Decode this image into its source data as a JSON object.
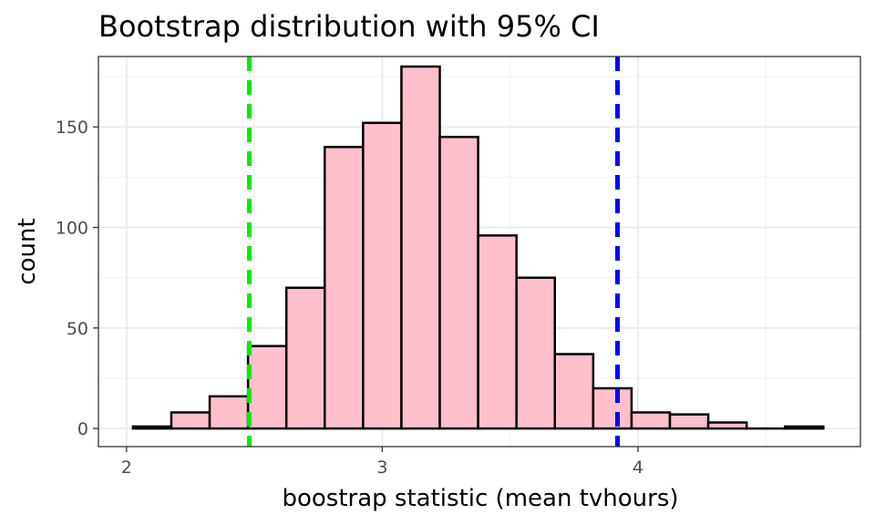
{
  "chart_data": {
    "type": "bar",
    "title": "Bootstrap distribution with 95% CI",
    "xlabel": "boostrap statistic (mean tvhours)",
    "ylabel": "count",
    "xlim": [
      1.89,
      4.87
    ],
    "ylim": [
      -9,
      185
    ],
    "x_ticks": [
      2,
      3,
      4
    ],
    "y_ticks": [
      0,
      50,
      100,
      150
    ],
    "grid": true,
    "bin_width": 0.15,
    "bins": [
      {
        "x0": 2.025,
        "x1": 2.175,
        "count": 1
      },
      {
        "x0": 2.175,
        "x1": 2.325,
        "count": 8
      },
      {
        "x0": 2.325,
        "x1": 2.475,
        "count": 16
      },
      {
        "x0": 2.475,
        "x1": 2.625,
        "count": 41
      },
      {
        "x0": 2.625,
        "x1": 2.775,
        "count": 70
      },
      {
        "x0": 2.775,
        "x1": 2.925,
        "count": 140
      },
      {
        "x0": 2.925,
        "x1": 3.075,
        "count": 152
      },
      {
        "x0": 3.075,
        "x1": 3.225,
        "count": 180
      },
      {
        "x0": 3.225,
        "x1": 3.375,
        "count": 145
      },
      {
        "x0": 3.375,
        "x1": 3.525,
        "count": 96
      },
      {
        "x0": 3.525,
        "x1": 3.675,
        "count": 75
      },
      {
        "x0": 3.675,
        "x1": 3.825,
        "count": 37
      },
      {
        "x0": 3.825,
        "x1": 3.975,
        "count": 20
      },
      {
        "x0": 3.975,
        "x1": 4.125,
        "count": 8
      },
      {
        "x0": 4.125,
        "x1": 4.275,
        "count": 7
      },
      {
        "x0": 4.275,
        "x1": 4.425,
        "count": 3
      },
      {
        "x0": 4.425,
        "x1": 4.575,
        "count": 0
      },
      {
        "x0": 4.575,
        "x1": 4.725,
        "count": 1
      }
    ],
    "ci_lines": [
      {
        "x": 2.48,
        "color": "#00ee00"
      },
      {
        "x": 3.92,
        "color": "#0000ff"
      }
    ],
    "bar_fill": "#ffc0cb",
    "bar_stroke": "#000000"
  }
}
